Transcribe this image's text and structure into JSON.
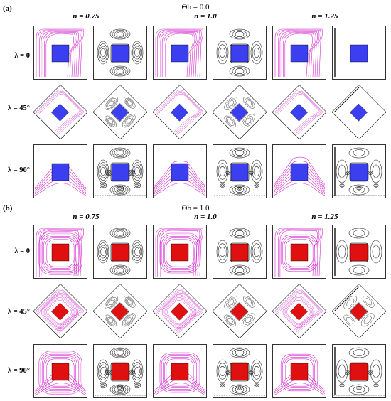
{
  "sections": [
    {
      "id": "a",
      "tag": "(a)",
      "title": "Θb = 0.0",
      "block_color": "#3b3ff0",
      "column_labels": [
        "n = 0.75",
        "n = 1.0",
        "n = 1.25"
      ],
      "row_labels": [
        "λ = 0",
        "λ = 45°",
        "λ = 90°"
      ]
    },
    {
      "id": "b",
      "tag": "(b)",
      "title": "Θb = 1.0",
      "block_color": "#e01010",
      "column_labels": [
        "n = 0.75",
        "n = 1.0",
        "n = 1.25"
      ],
      "row_labels": [
        "λ = 0",
        "λ = 45°",
        "λ = 90°"
      ]
    }
  ],
  "colors": {
    "isotherm": "#d62bd0",
    "streamline": "#111111",
    "frame": "#000000"
  }
}
